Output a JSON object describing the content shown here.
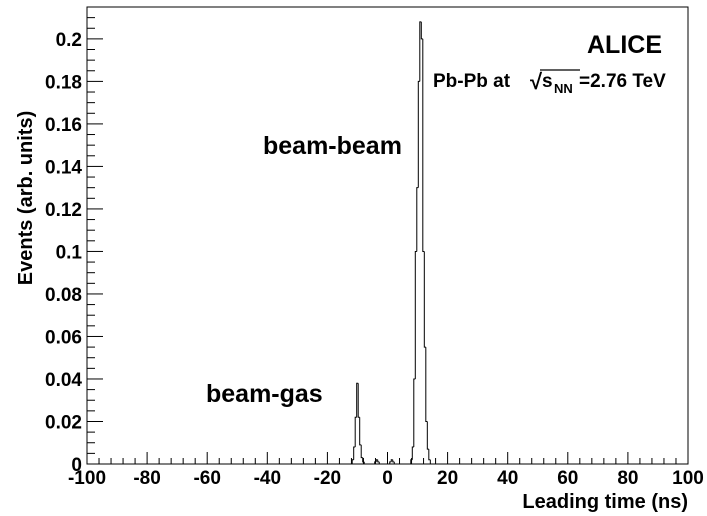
{
  "chart_data": {
    "type": "histogram",
    "xlabel": "Leading time (ns)",
    "ylabel": "Events (arb. units)",
    "xlim": [
      -100,
      100
    ],
    "ylim": [
      0,
      0.215
    ],
    "x_ticks": [
      -100,
      -80,
      -60,
      -40,
      -20,
      0,
      20,
      40,
      60,
      80,
      100
    ],
    "x_tick_labels": [
      "-100",
      "-80",
      "-60",
      "-40",
      "-20",
      "0",
      "20",
      "40",
      "60",
      "80",
      "100"
    ],
    "y_ticks": [
      0,
      0.02,
      0.04,
      0.06,
      0.08,
      0.1,
      0.12,
      0.14,
      0.16,
      0.18,
      0.2
    ],
    "y_tick_labels": [
      "0",
      "0.02",
      "0.04",
      "0.06",
      "0.08",
      "0.1",
      "0.12",
      "0.14",
      "0.16",
      "0.18",
      "0.2"
    ],
    "grid": false,
    "line_color": "#000000",
    "bin_width": 0.5,
    "bins": [
      {
        "x": -11.5,
        "y": 0.002
      },
      {
        "x": -11.0,
        "y": 0.008
      },
      {
        "x": -10.5,
        "y": 0.022
      },
      {
        "x": -10.0,
        "y": 0.038
      },
      {
        "x": -9.5,
        "y": 0.022
      },
      {
        "x": -9.0,
        "y": 0.009
      },
      {
        "x": -8.5,
        "y": 0.003
      },
      {
        "x": -8.0,
        "y": 0.001
      },
      {
        "x": -4.0,
        "y": 0.001
      },
      {
        "x": -3.5,
        "y": 0.002
      },
      {
        "x": -3.0,
        "y": 0.001
      },
      {
        "x": 1.0,
        "y": 0.001
      },
      {
        "x": 1.5,
        "y": 0.002
      },
      {
        "x": 2.0,
        "y": 0.001
      },
      {
        "x": 8.0,
        "y": 0.002
      },
      {
        "x": 8.5,
        "y": 0.008
      },
      {
        "x": 9.0,
        "y": 0.04
      },
      {
        "x": 9.5,
        "y": 0.1
      },
      {
        "x": 10.0,
        "y": 0.13
      },
      {
        "x": 10.5,
        "y": 0.18
      },
      {
        "x": 11.0,
        "y": 0.208
      },
      {
        "x": 11.5,
        "y": 0.2
      },
      {
        "x": 12.0,
        "y": 0.1
      },
      {
        "x": 12.5,
        "y": 0.055
      },
      {
        "x": 13.0,
        "y": 0.02
      },
      {
        "x": 13.5,
        "y": 0.007
      },
      {
        "x": 14.0,
        "y": 0.002
      }
    ],
    "annotations": [
      {
        "id": "beam-beam",
        "text": "beam-beam"
      },
      {
        "id": "beam-gas",
        "text": "beam-gas"
      },
      {
        "id": "experiment",
        "text": "ALICE"
      },
      {
        "id": "system",
        "text": "Pb-Pb at",
        "sqrt_symbol": "√",
        "var": "s",
        "sub": "NN",
        "value": "=2.76 TeV"
      }
    ]
  }
}
